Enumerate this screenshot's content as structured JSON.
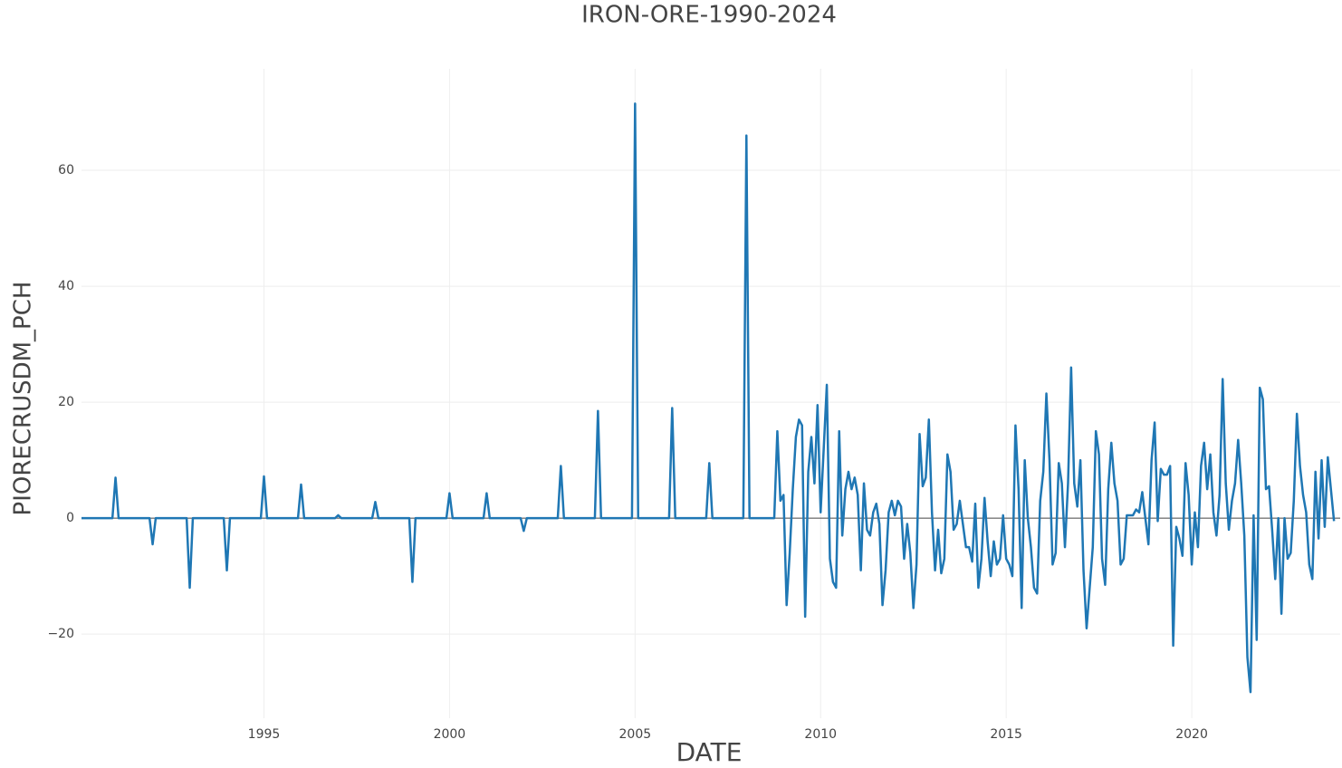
{
  "chart_data": {
    "type": "line",
    "title": "IRON-ORE-1990-2024",
    "x_label": "DATE",
    "y_label": "PIORECRUSDM_PCH",
    "color": "#1f77b4",
    "grid": true,
    "zeroline": true,
    "xlim": [
      "1990-02",
      "2024-01"
    ],
    "xticks": [
      "1995",
      "2000",
      "2005",
      "2010",
      "2015",
      "2020"
    ],
    "ylim": [
      -34.5,
      77.5
    ],
    "yticks": [
      {
        "value": -20,
        "label": "−20"
      },
      0,
      20,
      40,
      60
    ],
    "x": [
      "1990-02",
      "1990-03",
      "1990-04",
      "1990-05",
      "1990-06",
      "1990-07",
      "1990-08",
      "1990-09",
      "1990-10",
      "1990-11",
      "1990-12",
      "1991-01",
      "1991-02",
      "1991-03",
      "1991-04",
      "1991-05",
      "1991-06",
      "1991-07",
      "1991-08",
      "1991-09",
      "1991-10",
      "1991-11",
      "1991-12",
      "1992-01",
      "1992-02",
      "1992-03",
      "1992-04",
      "1992-05",
      "1992-06",
      "1992-07",
      "1992-08",
      "1992-09",
      "1992-10",
      "1992-11",
      "1992-12",
      "1993-01",
      "1993-02",
      "1993-03",
      "1993-04",
      "1993-05",
      "1993-06",
      "1993-07",
      "1993-08",
      "1993-09",
      "1993-10",
      "1993-11",
      "1993-12",
      "1994-01",
      "1994-02",
      "1994-03",
      "1994-04",
      "1994-05",
      "1994-06",
      "1994-07",
      "1994-08",
      "1994-09",
      "1994-10",
      "1994-11",
      "1994-12",
      "1995-01",
      "1995-02",
      "1995-03",
      "1995-04",
      "1995-05",
      "1995-06",
      "1995-07",
      "1995-08",
      "1995-09",
      "1995-10",
      "1995-11",
      "1995-12",
      "1996-01",
      "1996-02",
      "1996-03",
      "1996-04",
      "1996-05",
      "1996-06",
      "1996-07",
      "1996-08",
      "1996-09",
      "1996-10",
      "1996-11",
      "1996-12",
      "1997-01",
      "1997-02",
      "1997-03",
      "1997-04",
      "1997-05",
      "1997-06",
      "1997-07",
      "1997-08",
      "1997-09",
      "1997-10",
      "1997-11",
      "1997-12",
      "1998-01",
      "1998-02",
      "1998-03",
      "1998-04",
      "1998-05",
      "1998-06",
      "1998-07",
      "1998-08",
      "1998-09",
      "1998-10",
      "1998-11",
      "1998-12",
      "1999-01",
      "1999-02",
      "1999-03",
      "1999-04",
      "1999-05",
      "1999-06",
      "1999-07",
      "1999-08",
      "1999-09",
      "1999-10",
      "1999-11",
      "1999-12",
      "2000-01",
      "2000-02",
      "2000-03",
      "2000-04",
      "2000-05",
      "2000-06",
      "2000-07",
      "2000-08",
      "2000-09",
      "2000-10",
      "2000-11",
      "2000-12",
      "2001-01",
      "2001-02",
      "2001-03",
      "2001-04",
      "2001-05",
      "2001-06",
      "2001-07",
      "2001-08",
      "2001-09",
      "2001-10",
      "2001-11",
      "2001-12",
      "2002-01",
      "2002-02",
      "2002-03",
      "2002-04",
      "2002-05",
      "2002-06",
      "2002-07",
      "2002-08",
      "2002-09",
      "2002-10",
      "2002-11",
      "2002-12",
      "2003-01",
      "2003-02",
      "2003-03",
      "2003-04",
      "2003-05",
      "2003-06",
      "2003-07",
      "2003-08",
      "2003-09",
      "2003-10",
      "2003-11",
      "2003-12",
      "2004-01",
      "2004-02",
      "2004-03",
      "2004-04",
      "2004-05",
      "2004-06",
      "2004-07",
      "2004-08",
      "2004-09",
      "2004-10",
      "2004-11",
      "2004-12",
      "2005-01",
      "2005-02",
      "2005-03",
      "2005-04",
      "2005-05",
      "2005-06",
      "2005-07",
      "2005-08",
      "2005-09",
      "2005-10",
      "2005-11",
      "2005-12",
      "2006-01",
      "2006-02",
      "2006-03",
      "2006-04",
      "2006-05",
      "2006-06",
      "2006-07",
      "2006-08",
      "2006-09",
      "2006-10",
      "2006-11",
      "2006-12",
      "2007-01",
      "2007-02",
      "2007-03",
      "2007-04",
      "2007-05",
      "2007-06",
      "2007-07",
      "2007-08",
      "2007-09",
      "2007-10",
      "2007-11",
      "2007-12",
      "2008-01",
      "2008-02",
      "2008-03",
      "2008-04",
      "2008-05",
      "2008-06",
      "2008-07",
      "2008-08",
      "2008-09",
      "2008-10",
      "2008-11",
      "2008-12",
      "2009-01",
      "2009-02",
      "2009-03",
      "2009-04",
      "2009-05",
      "2009-06",
      "2009-07",
      "2009-08",
      "2009-09",
      "2009-10",
      "2009-11",
      "2009-12",
      "2010-01",
      "2010-02",
      "2010-03",
      "2010-04",
      "2010-05",
      "2010-06",
      "2010-07",
      "2010-08",
      "2010-09",
      "2010-10",
      "2010-11",
      "2010-12",
      "2011-01",
      "2011-02",
      "2011-03",
      "2011-04",
      "2011-05",
      "2011-06",
      "2011-07",
      "2011-08",
      "2011-09",
      "2011-10",
      "2011-11",
      "2011-12",
      "2012-01",
      "2012-02",
      "2012-03",
      "2012-04",
      "2012-05",
      "2012-06",
      "2012-07",
      "2012-08",
      "2012-09",
      "2012-10",
      "2012-11",
      "2012-12",
      "2013-01",
      "2013-02",
      "2013-03",
      "2013-04",
      "2013-05",
      "2013-06",
      "2013-07",
      "2013-08",
      "2013-09",
      "2013-10",
      "2013-11",
      "2013-12",
      "2014-01",
      "2014-02",
      "2014-03",
      "2014-04",
      "2014-05",
      "2014-06",
      "2014-07",
      "2014-08",
      "2014-09",
      "2014-10",
      "2014-11",
      "2014-12",
      "2015-01",
      "2015-02",
      "2015-03",
      "2015-04",
      "2015-05",
      "2015-06",
      "2015-07",
      "2015-08",
      "2015-09",
      "2015-10",
      "2015-11",
      "2015-12",
      "2016-01",
      "2016-02",
      "2016-03",
      "2016-04",
      "2016-05",
      "2016-06",
      "2016-07",
      "2016-08",
      "2016-09",
      "2016-10",
      "2016-11",
      "2016-12",
      "2017-01",
      "2017-02",
      "2017-03",
      "2017-04",
      "2017-05",
      "2017-06",
      "2017-07",
      "2017-08",
      "2017-09",
      "2017-10",
      "2017-11",
      "2017-12",
      "2018-01",
      "2018-02",
      "2018-03",
      "2018-04",
      "2018-05",
      "2018-06",
      "2018-07",
      "2018-08",
      "2018-09",
      "2018-10",
      "2018-11",
      "2018-12",
      "2019-01",
      "2019-02",
      "2019-03",
      "2019-04",
      "2019-05",
      "2019-06",
      "2019-07",
      "2019-08",
      "2019-09",
      "2019-10",
      "2019-11",
      "2019-12",
      "2020-01",
      "2020-02",
      "2020-03",
      "2020-04",
      "2020-05",
      "2020-06",
      "2020-07",
      "2020-08",
      "2020-09",
      "2020-10",
      "2020-11",
      "2020-12",
      "2021-01",
      "2021-02",
      "2021-03",
      "2021-04",
      "2021-05",
      "2021-06",
      "2021-07",
      "2021-08",
      "2021-09",
      "2021-10",
      "2021-11",
      "2021-12",
      "2022-01",
      "2022-02",
      "2022-03",
      "2022-04",
      "2022-05",
      "2022-06",
      "2022-07",
      "2022-08",
      "2022-09",
      "2022-10",
      "2022-11",
      "2022-12",
      "2023-01",
      "2023-02",
      "2023-03",
      "2023-04",
      "2023-05",
      "2023-06",
      "2023-07",
      "2023-08",
      "2023-09",
      "2023-10",
      "2023-11"
    ],
    "values": [
      0,
      0,
      0,
      0,
      0,
      0,
      0,
      0,
      0,
      0,
      0,
      7,
      0,
      0,
      0,
      0,
      0,
      0,
      0,
      0,
      0,
      0,
      0,
      -4.5,
      0,
      0,
      0,
      0,
      0,
      0,
      0,
      0,
      0,
      0,
      0,
      -12,
      0,
      0,
      0,
      0,
      0,
      0,
      0,
      0,
      0,
      0,
      0,
      -9,
      0,
      0,
      0,
      0,
      0,
      0,
      0,
      0,
      0,
      0,
      0,
      7.2,
      0,
      0,
      0,
      0,
      0,
      0,
      0,
      0,
      0,
      0,
      0,
      5.8,
      0,
      0,
      0,
      0,
      0,
      0,
      0,
      0,
      0,
      0,
      0,
      0.5,
      0,
      0,
      0,
      0,
      0,
      0,
      0,
      0,
      0,
      0,
      0,
      2.8,
      0,
      0,
      0,
      0,
      0,
      0,
      0,
      0,
      0,
      0,
      0,
      -11,
      0,
      0,
      0,
      0,
      0,
      0,
      0,
      0,
      0,
      0,
      0,
      4.3,
      0,
      0,
      0,
      0,
      0,
      0,
      0,
      0,
      0,
      0,
      0,
      4.3,
      0,
      0,
      0,
      0,
      0,
      0,
      0,
      0,
      0,
      0,
      0,
      -2.2,
      0,
      0,
      0,
      0,
      0,
      0,
      0,
      0,
      0,
      0,
      0,
      9,
      0,
      0,
      0,
      0,
      0,
      0,
      0,
      0,
      0,
      0,
      0,
      18.5,
      0,
      0,
      0,
      0,
      0,
      0,
      0,
      0,
      0,
      0,
      0,
      71.5,
      0,
      0,
      0,
      0,
      0,
      0,
      0,
      0,
      0,
      0,
      0,
      19,
      0,
      0,
      0,
      0,
      0,
      0,
      0,
      0,
      0,
      0,
      0,
      9.5,
      0,
      0,
      0,
      0,
      0,
      0,
      0,
      0,
      0,
      0,
      0,
      66,
      0,
      0,
      0,
      0,
      0,
      0,
      0,
      0,
      0,
      15,
      3,
      4,
      -15,
      -6,
      5,
      14,
      17,
      16,
      -17,
      8,
      14,
      6,
      19.5,
      1,
      12,
      23,
      -7,
      -11,
      -12,
      15,
      -3,
      5,
      8,
      5,
      7,
      4,
      -9,
      6,
      -2,
      -3,
      1,
      2.5,
      -1,
      -15,
      -9,
      1,
      3,
      0.5,
      3,
      2,
      -7,
      -1,
      -6,
      -15.5,
      -8,
      14.5,
      5.5,
      7,
      17,
      1,
      -9,
      -2,
      -9.5,
      -7,
      11,
      8,
      -2,
      -1,
      3,
      -1,
      -5,
      -5,
      -7.5,
      2.5,
      -12,
      -7,
      3.5,
      -4,
      -10,
      -4,
      -8,
      -7,
      0.5,
      -7,
      -8,
      -10,
      16,
      5,
      -15.5,
      10,
      0,
      -5,
      -12,
      -13,
      3,
      8,
      21.5,
      10,
      -8,
      -6,
      9.5,
      6,
      -5,
      6,
      26,
      6,
      2,
      10,
      -9,
      -19,
      -12,
      -5,
      15,
      11,
      -7,
      -11.5,
      5,
      13,
      6,
      3,
      -8,
      -7,
      0.5,
      0.5,
      0.5,
      1.5,
      1,
      4.5,
      0,
      -4.5,
      10,
      16.5,
      -0.5,
      8.5,
      7.5,
      7.5,
      9,
      -22,
      -1.5,
      -3.5,
      -6.5,
      9.5,
      4,
      -8,
      1,
      -5,
      9,
      13,
      5,
      11,
      1,
      -3,
      4,
      24,
      6,
      -2,
      3,
      6,
      13.5,
      6,
      -3,
      -24,
      -30,
      0.5,
      -21,
      22.5,
      20.5,
      5,
      5.5,
      -2,
      -10.5,
      0,
      -16.5,
      0,
      -7,
      -6,
      3,
      18,
      9,
      4,
      1,
      -8,
      -10.5,
      8,
      -3.5,
      10,
      -1.5,
      10.5,
      5,
      -0.5
    ]
  }
}
